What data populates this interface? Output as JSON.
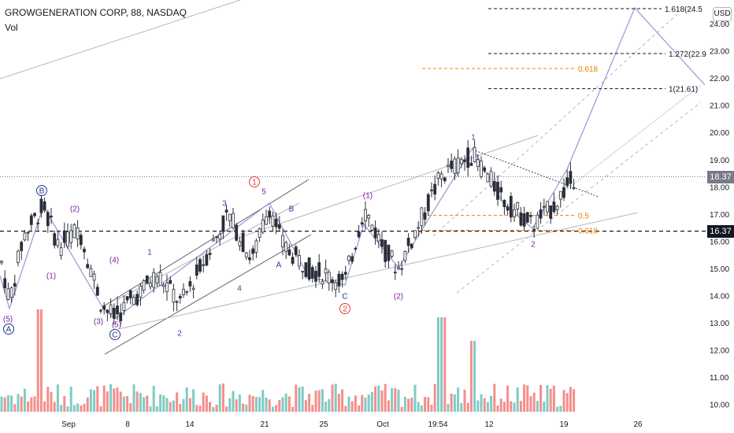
{
  "header": {
    "title": "GROWGENERATION CORP, 88, NASDAQ",
    "volume_label": "Vol",
    "currency": "USD"
  },
  "price_tags": [
    {
      "value": "18.37",
      "price": 18.37,
      "color": "#787b86"
    },
    {
      "value": "16.37",
      "price": 16.37,
      "color": "#131722"
    }
  ],
  "chart_data": {
    "type": "candlestick",
    "y_axis": {
      "ticks": [
        "10.00",
        "11.00",
        "12.00",
        "13.00",
        "14.00",
        "15.00",
        "16.00",
        "17.00",
        "18.00",
        "19.00",
        "20.00",
        "21.00",
        "22.00",
        "23.00",
        "24.00"
      ],
      "range": [
        9.8,
        24.6
      ],
      "scale": "linear"
    },
    "x_axis": {
      "ticks": [
        "Sep",
        "8",
        "14",
        "21",
        "25",
        "Oct",
        "19:54",
        "12",
        "19",
        "26"
      ]
    },
    "reference_lines": [
      {
        "price": 18.37,
        "style": "dotted",
        "color": "#787b86"
      },
      {
        "price": 16.37,
        "style": "dashed",
        "color": "#131722"
      }
    ],
    "fibonacci_levels": [
      {
        "label": "1.618(24.5",
        "price": 24.55,
        "color": "#131722"
      },
      {
        "label": "1.272(22.9",
        "price": 22.9,
        "color": "#131722"
      },
      {
        "label": "1(21.61)",
        "price": 21.61,
        "color": "#131722"
      },
      {
        "label": "0.618",
        "price": 22.35,
        "color": "#f57c00"
      },
      {
        "label": "0.5",
        "price": 16.95,
        "color": "#f57c00"
      },
      {
        "label": "0.618",
        "price": 16.4,
        "color": "#f57c00"
      }
    ],
    "wave_labels": [
      {
        "text": "B",
        "circled": true,
        "color": "#1e3a8a"
      },
      {
        "text": "(2)",
        "circled": false,
        "color": "#7b1fa2"
      },
      {
        "text": "(1)",
        "circled": false,
        "color": "#7b1fa2"
      },
      {
        "text": "(5)",
        "circled": false,
        "color": "#7b1fa2"
      },
      {
        "text": "A",
        "circled": true,
        "color": "#1e3a8a"
      },
      {
        "text": "(4)",
        "circled": false,
        "color": "#7b1fa2"
      },
      {
        "text": "(3)",
        "circled": false,
        "color": "#7b1fa2"
      },
      {
        "text": "(5)",
        "circled": false,
        "color": "#7b1fa2"
      },
      {
        "text": "C",
        "circled": true,
        "color": "#1e3a8a"
      },
      {
        "text": "1",
        "circled": false,
        "color": "#7b1fa2"
      },
      {
        "text": "2",
        "circled": false,
        "color": "#7b1fa2"
      },
      {
        "text": "3",
        "circled": false,
        "color": "#7b1fa2"
      },
      {
        "text": "4",
        "circled": false,
        "color": "#7b1fa2"
      },
      {
        "text": "1",
        "circled": true,
        "color": "#e53935"
      },
      {
        "text": "5",
        "circled": false,
        "color": "#7b1fa2"
      },
      {
        "text": "B",
        "circled": false,
        "color": "#1e3a8a"
      },
      {
        "text": "A",
        "circled": false,
        "color": "#1e3a8a"
      },
      {
        "text": "C",
        "circled": false,
        "color": "#1e3a8a"
      },
      {
        "text": "2",
        "circled": true,
        "color": "#e53935"
      },
      {
        "text": "(1)",
        "circled": false,
        "color": "#7b1fa2"
      },
      {
        "text": "(2)",
        "circled": false,
        "color": "#7b1fa2"
      },
      {
        "text": "1",
        "circled": false,
        "color": "#7b1fa2"
      },
      {
        "text": "2",
        "circled": false,
        "color": "#7b1fa2"
      }
    ],
    "colors": {
      "candle": "#2a2e39",
      "volume_up": "#80cbc4",
      "volume_down": "#f48f8c",
      "projection": "#9b93d6",
      "channel": "#5d606b",
      "channel_light": "#b2b5be"
    }
  }
}
